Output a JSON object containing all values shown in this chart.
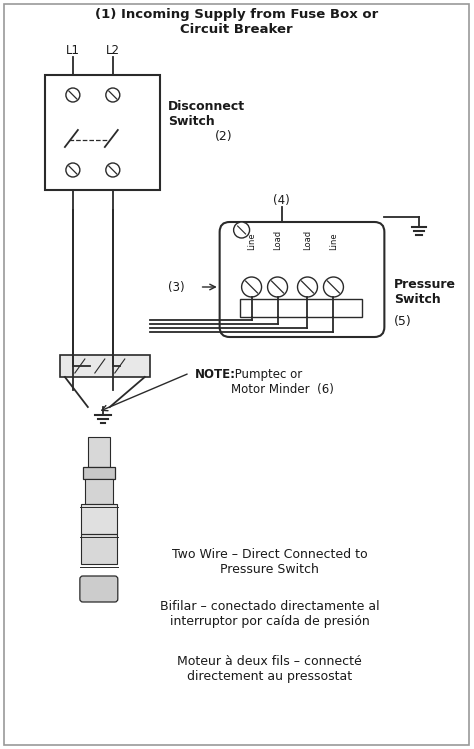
{
  "title": "(1) Incoming Supply from Fuse Box or\nCircuit Breaker",
  "bg_color": "#ffffff",
  "text_color": "#1a1a1a",
  "line_color": "#2a2a2a",
  "fig_width": 4.74,
  "fig_height": 7.49,
  "label_disconnect": "Disconnect\nSwitch",
  "label_disconnect_num": "(2)",
  "label_pressure": "Pressure\nSwitch",
  "label_pressure_num": "(5)",
  "label_note_bold": "NOTE:",
  "label_note_rest": " Pumptec or\nMotor Minder  (6)",
  "label_l1": "L1",
  "label_l2": "L2",
  "label_3": "(3)",
  "label_4": "(4)",
  "label_line1": "Line",
  "label_load1": "Load",
  "label_load2": "Load",
  "label_line2": "Line",
  "text1": "Two Wire – Direct Connected to\nPressure Switch",
  "text2": "Bifilar – conectado directamente al\ninterruptor por caída de presión",
  "text3": "Moteur à deux fils – connecté\ndirectement au pressostat"
}
